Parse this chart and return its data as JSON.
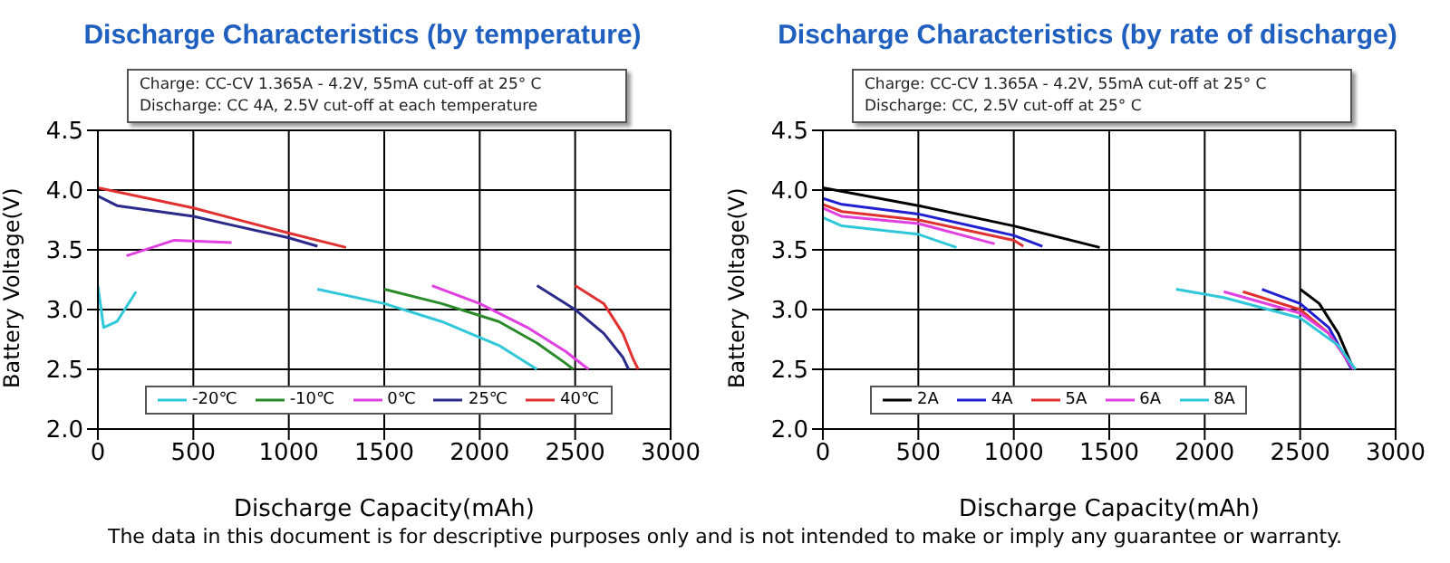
{
  "chart_data": [
    {
      "type": "line",
      "title": "Discharge Characteristics (by temperature)",
      "xlabel": "Discharge Capacity(mAh)",
      "ylabel": "Battery Voltage(V)",
      "annotations": [
        "Charge: CC-CV 1.365A - 4.2V, 55mA cut-off at 25° C",
        "Discharge: CC 4A, 2.5V cut-off at each temperature",
        "The data in this document is for descriptive purposes only and is not intended to make or imply any guarantee or warranty."
      ],
      "xlim": [
        0,
        3000
      ],
      "xticks": [
        0,
        500,
        1000,
        1500,
        2000,
        2500,
        3000
      ],
      "ylim": [
        2,
        4.5
      ],
      "yticks": [
        {
          "value": 2,
          "label": "2.0"
        },
        2.5,
        {
          "value": 3,
          "label": "3.0"
        },
        3.5,
        {
          "value": 4,
          "label": "4.0"
        },
        4.5
      ],
      "grid": true,
      "legend": "bottom",
      "marker": "none",
      "line_style": "solid",
      "series": [
        {
          "name": "-20℃",
          "color": "#30c8d8",
          "x": [
            0,
            30,
            100,
            200,
            700,
            1150,
            1500,
            1800,
            2100,
            2300
          ],
          "values": [
            3.2,
            2.85,
            2.9,
            3.15,
            null,
            3.17,
            3.05,
            2.9,
            2.7,
            2.5
          ]
        },
        {
          "name": "-10℃",
          "color": "#2a8a2a",
          "x": [
            1500,
            1800,
            2100,
            2300,
            2450,
            2490
          ],
          "values": [
            3.17,
            3.05,
            2.9,
            2.72,
            2.55,
            2.5
          ]
        },
        {
          "name": "0℃",
          "color": "#e040e0",
          "x": [
            150,
            400,
            700,
            1200,
            1750,
            2000,
            2250,
            2450,
            2570
          ],
          "values": [
            3.45,
            3.58,
            3.56,
            null,
            3.2,
            3.05,
            2.85,
            2.65,
            2.5
          ]
        },
        {
          "name": "25℃",
          "color": "#2a2a8a",
          "x": [
            0,
            100,
            500,
            1000,
            1150,
            1700,
            2300,
            2500,
            2650,
            2750,
            2780
          ],
          "values": [
            3.95,
            3.87,
            3.78,
            3.6,
            3.53,
            null,
            3.2,
            3.0,
            2.8,
            2.6,
            2.5
          ]
        },
        {
          "name": "40℃",
          "color": "#e03030",
          "x": [
            0,
            500,
            1000,
            1300,
            1900,
            2500,
            2650,
            2750,
            2800,
            2830
          ],
          "values": [
            4.02,
            3.85,
            3.64,
            3.52,
            null,
            3.2,
            3.05,
            2.8,
            2.6,
            2.5
          ]
        }
      ]
    },
    {
      "type": "line",
      "title": "Discharge Characteristics (by rate of discharge)",
      "xlabel": "Discharge Capacity(mAh)",
      "ylabel": "Battery Voltage(V)",
      "annotations": [
        "Charge: CC-CV 1.365A - 4.2V, 55mA cut-off at 25° C",
        "Discharge: CC, 2.5V cut-off at 25° C"
      ],
      "xlim": [
        0,
        3000
      ],
      "xticks": [
        0,
        500,
        1000,
        1500,
        2000,
        2500,
        3000
      ],
      "ylim": [
        2,
        4.5
      ],
      "yticks": [
        {
          "value": 2,
          "label": "2.0"
        },
        2.5,
        {
          "value": 3,
          "label": "3.0"
        },
        3.5,
        {
          "value": 4,
          "label": "4.0"
        },
        4.5
      ],
      "grid": true,
      "legend": "bottom",
      "marker": "none",
      "line_style": "solid",
      "series": [
        {
          "name": "2A",
          "color": "#000000",
          "x": [
            0,
            500,
            1000,
            1450,
            2000,
            2500,
            2600,
            2700,
            2780
          ],
          "values": [
            4.02,
            3.87,
            3.7,
            3.52,
            null,
            3.17,
            3.05,
            2.8,
            2.5
          ]
        },
        {
          "name": "4A",
          "color": "#2020d0",
          "x": [
            0,
            100,
            500,
            1000,
            1150,
            1700,
            2300,
            2500,
            2650,
            2770
          ],
          "values": [
            3.93,
            3.88,
            3.8,
            3.62,
            3.53,
            null,
            3.17,
            3.05,
            2.85,
            2.5
          ]
        },
        {
          "name": "5A",
          "color": "#e03030",
          "x": [
            0,
            100,
            500,
            1000,
            1050,
            1600,
            2200,
            2500,
            2650,
            2780
          ],
          "values": [
            3.88,
            3.82,
            3.75,
            3.58,
            3.53,
            null,
            3.15,
            3.0,
            2.8,
            2.5
          ]
        },
        {
          "name": "6A",
          "color": "#e040e0",
          "x": [
            0,
            100,
            500,
            900,
            1500,
            2100,
            2500,
            2650,
            2780
          ],
          "values": [
            3.85,
            3.78,
            3.72,
            3.55,
            null,
            3.15,
            2.97,
            2.8,
            2.5
          ]
        },
        {
          "name": "8A",
          "color": "#30c8d8",
          "x": [
            0,
            100,
            500,
            700,
            1300,
            1850,
            2100,
            2500,
            2700,
            2790
          ],
          "values": [
            3.77,
            3.7,
            3.63,
            3.52,
            null,
            3.17,
            3.1,
            2.93,
            2.7,
            2.5
          ]
        }
      ]
    }
  ]
}
